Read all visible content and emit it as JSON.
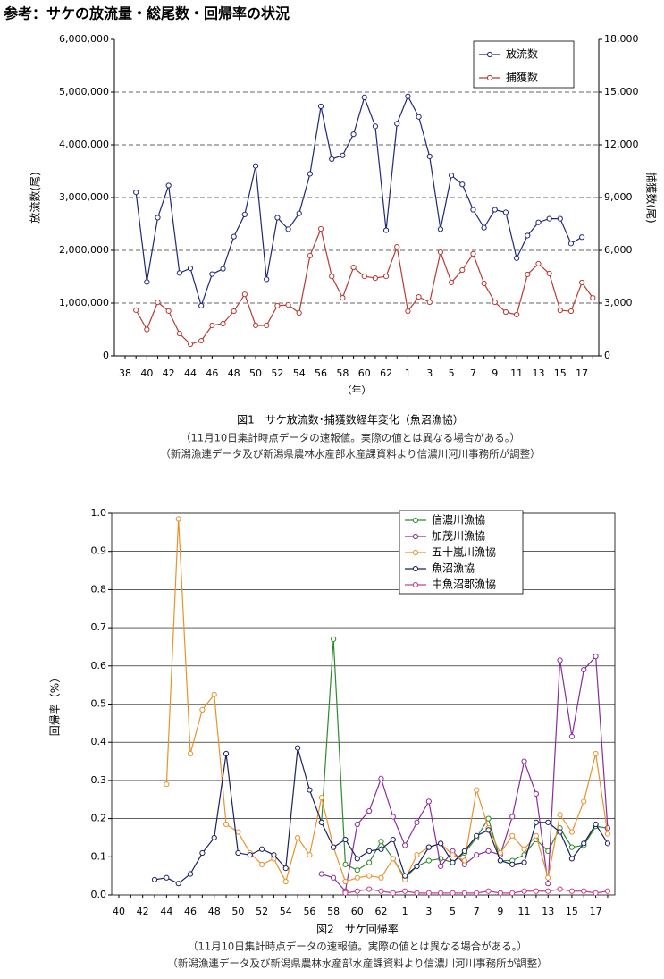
{
  "title": "参考：サケの放流量・総尾数・回帰率の状況",
  "chart_data": [
    {
      "type": "line",
      "xlabel": "（年）",
      "ylabel": "放流数(尾)",
      "y2label": "捕獲数(尾)",
      "caption": "図1　サケ放流数･捕獲数経年変化（魚沼漁協）",
      "notes": [
        "（11月10日集計時点データの速報値。実際の値とは異なる場合がある。）",
        "（新潟漁連データ及び新潟県農林水産部水産課資料より信濃川河川事務所が調整）"
      ],
      "categories": [
        "38",
        null,
        "40",
        null,
        "42",
        null,
        "44",
        null,
        "46",
        null,
        "48",
        null,
        "50",
        null,
        "52",
        null,
        "54",
        null,
        "56",
        null,
        "58",
        null,
        "60",
        null,
        "62",
        null,
        "1",
        null,
        "3",
        null,
        "5",
        null,
        "7",
        null,
        "9",
        null,
        "11",
        null,
        "13",
        null,
        "15",
        null,
        "17",
        null
      ],
      "ylim": [
        0,
        6000000
      ],
      "yticks": [
        0,
        {
          "value": 1000000,
          "label": "1,000,000"
        },
        {
          "value": 2000000,
          "label": "2,000,000"
        },
        {
          "value": 3000000,
          "label": "3,000,000"
        },
        {
          "value": 4000000,
          "label": "4,000,000"
        },
        {
          "value": 5000000,
          "label": "5,000,000"
        },
        {
          "value": 6000000,
          "label": "6,000,000"
        }
      ],
      "y2lim": [
        0,
        18000
      ],
      "y2ticks": [
        0,
        {
          "value": 3000,
          "label": "3,000"
        },
        {
          "value": 6000,
          "label": "6,000"
        },
        {
          "value": 9000,
          "label": "9,000"
        },
        {
          "value": 12000,
          "label": "12,000"
        },
        {
          "value": 15000,
          "label": "15,000"
        },
        {
          "value": 18000,
          "label": "18,000"
        }
      ],
      "grid": "dashed",
      "legend": "upper right",
      "series": [
        {
          "name": "放流数",
          "color": "#1f2878",
          "values": [
            null,
            3100000,
            1400000,
            2620000,
            3230000,
            1570000,
            1660000,
            950000,
            1550000,
            1650000,
            2260000,
            2680000,
            3600000,
            1450000,
            2620000,
            2400000,
            2700000,
            3450000,
            4730000,
            3730000,
            3800000,
            4200000,
            4900000,
            4350000,
            2380000,
            4400000,
            4920000,
            4530000,
            3780000,
            2400000,
            3420000,
            3250000,
            2770000,
            2430000,
            2770000,
            2720000,
            1850000,
            2280000,
            2530000,
            2600000,
            2600000,
            2130000,
            2250000,
            null
          ]
        },
        {
          "name": "捕獲数",
          "color": "#b83a32",
          "axis": "y2",
          "values": [
            null,
            2600,
            1500,
            3050,
            2550,
            1270,
            660,
            860,
            1730,
            1830,
            2540,
            3500,
            1730,
            1730,
            2850,
            2900,
            2440,
            5700,
            7220,
            4520,
            3300,
            5030,
            4520,
            4420,
            4520,
            6200,
            2540,
            3350,
            3050,
            5900,
            4170,
            4880,
            5800,
            4120,
            3050,
            2490,
            2340,
            4630,
            5240,
            4680,
            2590,
            2540,
            4170,
            3300
          ]
        }
      ]
    },
    {
      "type": "line",
      "ylabel": "回帰率（%）",
      "caption": "図2　サケ回帰率",
      "notes": [
        "（11月10日集計時点データの速報値。実際の値とは異なる場合がある。）",
        "（新潟漁連データ及び新潟県農林水産部水産課資料より信濃川河川事務所が調整）"
      ],
      "categories": [
        "40",
        null,
        "42",
        null,
        "44",
        null,
        "46",
        null,
        "48",
        null,
        "50",
        null,
        "52",
        null,
        "54",
        null,
        "56",
        null,
        "58",
        null,
        "60",
        null,
        "62",
        null,
        "1",
        null,
        "3",
        null,
        "5",
        null,
        "7",
        null,
        "9",
        null,
        "11",
        null,
        "13",
        null,
        "15",
        null,
        "17",
        null
      ],
      "ylim": [
        0,
        1
      ],
      "yticks": [
        {
          "value": 0,
          "label": "0.0"
        },
        0.1,
        0.2,
        0.3,
        0.4,
        0.5,
        0.6,
        0.7,
        0.8,
        0.9,
        {
          "value": 1,
          "label": "1.0"
        }
      ],
      "grid": "solid",
      "legend": "upper center",
      "series": [
        {
          "name": "信濃川漁協",
          "color": "#2e8b2e",
          "values": [
            null,
            null,
            null,
            null,
            null,
            null,
            null,
            null,
            null,
            null,
            null,
            null,
            null,
            null,
            null,
            null,
            null,
            0.19,
            0.67,
            0.08,
            0.065,
            0.085,
            0.14,
            0.095,
            0.045,
            0.075,
            0.09,
            0.095,
            0.085,
            0.11,
            0.15,
            0.2,
            0.09,
            0.09,
            0.105,
            0.145,
            0.115,
            0.175,
            0.125,
            0.13,
            0.18,
            0.175
          ]
        },
        {
          "name": "加茂川漁協",
          "color": "#8a2c9c",
          "values": [
            null,
            null,
            null,
            null,
            null,
            null,
            null,
            null,
            null,
            null,
            null,
            null,
            null,
            null,
            null,
            null,
            null,
            0.055,
            0.045,
            0.01,
            0.185,
            0.22,
            0.305,
            0.205,
            0.13,
            0.19,
            0.245,
            0.075,
            0.115,
            0.08,
            0.105,
            0.115,
            0.105,
            0.205,
            0.35,
            0.265,
            0.03,
            0.615,
            0.415,
            0.59,
            0.625,
            0.175
          ]
        },
        {
          "name": "五十嵐川漁協",
          "color": "#e8922e",
          "values": [
            null,
            null,
            null,
            null,
            0.29,
            0.985,
            0.37,
            0.485,
            0.525,
            0.185,
            0.165,
            0.11,
            0.08,
            0.095,
            0.035,
            0.15,
            0.105,
            0.255,
            0.125,
            0.035,
            0.045,
            0.05,
            0.045,
            0.095,
            0.04,
            0.105,
            0.125,
            0.135,
            0.105,
            0.09,
            0.275,
            0.175,
            0.11,
            0.155,
            0.12,
            0.155,
            0.045,
            0.21,
            0.165,
            0.245,
            0.37,
            0.16
          ]
        },
        {
          "name": "魚沼漁協",
          "color": "#1a2260",
          "values": [
            null,
            null,
            null,
            0.04,
            0.045,
            0.03,
            0.055,
            0.11,
            0.15,
            0.37,
            0.11,
            0.105,
            0.12,
            0.105,
            0.07,
            0.385,
            0.275,
            0.19,
            0.125,
            0.145,
            0.095,
            0.115,
            0.12,
            0.145,
            0.05,
            0.075,
            0.125,
            0.135,
            0.085,
            0.115,
            0.155,
            0.17,
            0.09,
            0.08,
            0.085,
            0.19,
            0.19,
            0.165,
            0.095,
            0.135,
            0.185,
            0.135
          ]
        },
        {
          "name": "中魚沼郡漁協",
          "color": "#c4408c",
          "values": [
            null,
            null,
            null,
            null,
            null,
            null,
            null,
            null,
            null,
            null,
            null,
            null,
            null,
            null,
            null,
            null,
            null,
            null,
            null,
            0.005,
            0.01,
            0.015,
            0.01,
            0.005,
            0.01,
            0.005,
            0.005,
            0.005,
            0.005,
            0.005,
            0.005,
            0.01,
            0.005,
            0.005,
            0.01,
            0.01,
            0.01,
            0.015,
            0.01,
            0.01,
            0.005,
            0.01
          ]
        }
      ]
    }
  ]
}
